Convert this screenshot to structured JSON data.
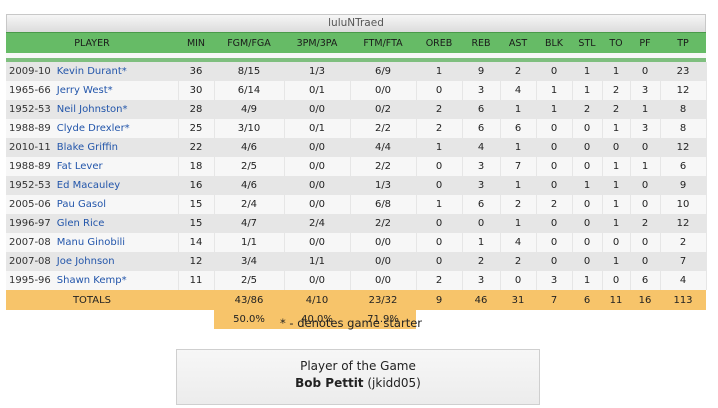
{
  "team_name": "luluNTraed",
  "columns": [
    "PLAYER",
    "MIN",
    "FGM/FGA",
    "3PM/3PA",
    "FTM/FTA",
    "OREB",
    "REB",
    "AST",
    "BLK",
    "STL",
    "TO",
    "PF",
    "TP"
  ],
  "players": [
    {
      "year": "2009-10",
      "name": "Kevin Durant*",
      "min": "36",
      "fg": "8/15",
      "tp3": "1/3",
      "ft": "6/9",
      "oreb": "1",
      "reb": "9",
      "ast": "2",
      "blk": "0",
      "stl": "1",
      "to": "1",
      "pf": "0",
      "tp": "23"
    },
    {
      "year": "1965-66",
      "name": "Jerry West*",
      "min": "30",
      "fg": "6/14",
      "tp3": "0/1",
      "ft": "0/0",
      "oreb": "0",
      "reb": "3",
      "ast": "4",
      "blk": "1",
      "stl": "1",
      "to": "2",
      "pf": "3",
      "tp": "12"
    },
    {
      "year": "1952-53",
      "name": "Neil Johnston*",
      "min": "28",
      "fg": "4/9",
      "tp3": "0/0",
      "ft": "0/2",
      "oreb": "2",
      "reb": "6",
      "ast": "1",
      "blk": "1",
      "stl": "2",
      "to": "2",
      "pf": "1",
      "tp": "8"
    },
    {
      "year": "1988-89",
      "name": "Clyde Drexler*",
      "min": "25",
      "fg": "3/10",
      "tp3": "0/1",
      "ft": "2/2",
      "oreb": "2",
      "reb": "6",
      "ast": "6",
      "blk": "0",
      "stl": "0",
      "to": "1",
      "pf": "3",
      "tp": "8"
    },
    {
      "year": "2010-11",
      "name": "Blake Griffin",
      "min": "22",
      "fg": "4/6",
      "tp3": "0/0",
      "ft": "4/4",
      "oreb": "1",
      "reb": "4",
      "ast": "1",
      "blk": "0",
      "stl": "0",
      "to": "0",
      "pf": "0",
      "tp": "12"
    },
    {
      "year": "1988-89",
      "name": "Fat Lever",
      "min": "18",
      "fg": "2/5",
      "tp3": "0/0",
      "ft": "2/2",
      "oreb": "0",
      "reb": "3",
      "ast": "7",
      "blk": "0",
      "stl": "0",
      "to": "1",
      "pf": "1",
      "tp": "6"
    },
    {
      "year": "1952-53",
      "name": "Ed Macauley",
      "min": "16",
      "fg": "4/6",
      "tp3": "0/0",
      "ft": "1/3",
      "oreb": "0",
      "reb": "3",
      "ast": "1",
      "blk": "0",
      "stl": "1",
      "to": "1",
      "pf": "0",
      "tp": "9"
    },
    {
      "year": "2005-06",
      "name": "Pau Gasol",
      "min": "15",
      "fg": "2/4",
      "tp3": "0/0",
      "ft": "6/8",
      "oreb": "1",
      "reb": "6",
      "ast": "2",
      "blk": "2",
      "stl": "0",
      "to": "1",
      "pf": "0",
      "tp": "10"
    },
    {
      "year": "1996-97",
      "name": "Glen Rice",
      "min": "15",
      "fg": "4/7",
      "tp3": "2/4",
      "ft": "2/2",
      "oreb": "0",
      "reb": "0",
      "ast": "1",
      "blk": "0",
      "stl": "0",
      "to": "1",
      "pf": "2",
      "tp": "12"
    },
    {
      "year": "2007-08",
      "name": "Manu Ginobili",
      "min": "14",
      "fg": "1/1",
      "tp3": "0/0",
      "ft": "0/0",
      "oreb": "0",
      "reb": "1",
      "ast": "4",
      "blk": "0",
      "stl": "0",
      "to": "0",
      "pf": "0",
      "tp": "2"
    },
    {
      "year": "2007-08",
      "name": "Joe Johnson",
      "min": "12",
      "fg": "3/4",
      "tp3": "1/1",
      "ft": "0/0",
      "oreb": "0",
      "reb": "2",
      "ast": "2",
      "blk": "0",
      "stl": "0",
      "to": "1",
      "pf": "0",
      "tp": "7"
    },
    {
      "year": "1995-96",
      "name": "Shawn Kemp*",
      "min": "11",
      "fg": "2/5",
      "tp3": "0/0",
      "ft": "0/0",
      "oreb": "2",
      "reb": "3",
      "ast": "0",
      "blk": "3",
      "stl": "1",
      "to": "0",
      "pf": "6",
      "tp": "4"
    }
  ],
  "totals": {
    "label": "TOTALS",
    "fg": "43/86",
    "tp3": "4/10",
    "ft": "23/32",
    "oreb": "9",
    "reb": "46",
    "ast": "31",
    "blk": "7",
    "stl": "6",
    "to": "11",
    "pf": "16",
    "tp": "113"
  },
  "percentages": {
    "fg": "50.0%",
    "tp3": "40.0%",
    "ft": "71.9%"
  },
  "note": "* - denotes game starter",
  "player_of_game": {
    "title": "Player of the Game",
    "name": "Bob Pettit",
    "user": "(jkidd05)"
  },
  "colors": {
    "header": "#66bb66",
    "totals": "#f7c46a",
    "link": "#2255aa"
  }
}
